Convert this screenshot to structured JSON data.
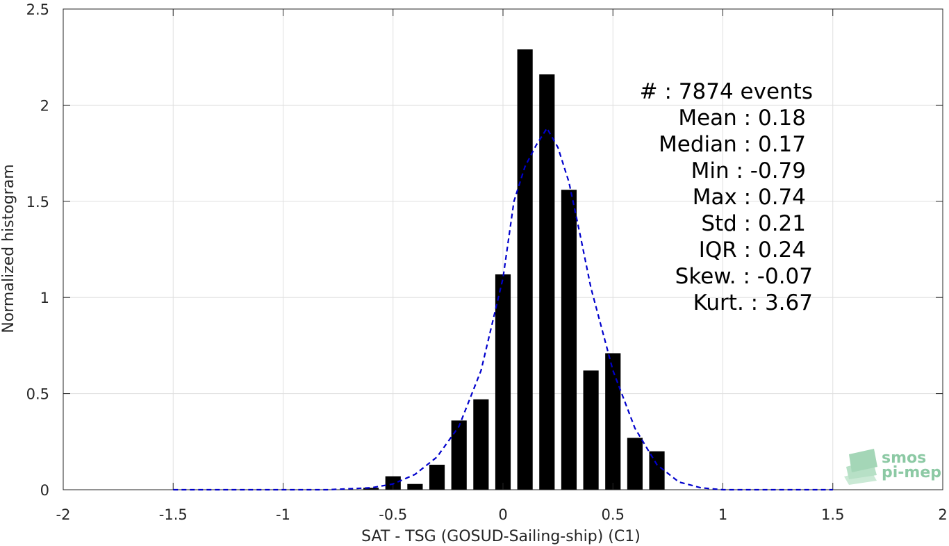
{
  "chart_data": {
    "type": "bar",
    "xlabel": "SAT - TSG (GOSUD-Sailing-ship) (C1)",
    "ylabel": "Normalized histogram",
    "xlim": [
      -2,
      2
    ],
    "ylim": [
      0,
      2.5
    ],
    "xticks": [
      -2,
      -1.5,
      -1,
      -0.5,
      0,
      0.5,
      1,
      1.5,
      2
    ],
    "xtick_labels": [
      "-2",
      "-1.5",
      "-1",
      "-0.5",
      "0",
      "0.5",
      "1",
      "1.5",
      "2"
    ],
    "yticks": [
      0,
      0.5,
      1,
      1.5,
      2,
      2.5
    ],
    "ytick_labels": [
      "0",
      "0.5",
      "1",
      "1.5",
      "2",
      "2.5"
    ],
    "grid": true,
    "bar_color": "#000000",
    "bars": {
      "x": [
        -0.6,
        -0.5,
        -0.4,
        -0.3,
        -0.2,
        -0.1,
        0.0,
        0.1,
        0.2,
        0.3,
        0.4,
        0.5,
        0.6,
        0.7
      ],
      "values": [
        0.01,
        0.07,
        0.03,
        0.13,
        0.36,
        0.47,
        1.12,
        2.29,
        2.16,
        1.56,
        0.62,
        0.71,
        0.27,
        0.2
      ]
    },
    "fit_curve": {
      "style": "dashed",
      "color": "#0000cc",
      "x": [
        -1.5,
        -1.0,
        -0.8,
        -0.6,
        -0.5,
        -0.4,
        -0.3,
        -0.2,
        -0.1,
        0.0,
        0.05,
        0.1,
        0.15,
        0.2,
        0.25,
        0.3,
        0.35,
        0.4,
        0.5,
        0.6,
        0.7,
        0.8,
        0.9,
        1.0,
        1.5
      ],
      "y": [
        0.0,
        0.0,
        0.0,
        0.01,
        0.03,
        0.08,
        0.17,
        0.33,
        0.62,
        1.1,
        1.5,
        1.68,
        1.79,
        1.88,
        1.78,
        1.6,
        1.33,
        1.05,
        0.62,
        0.32,
        0.13,
        0.04,
        0.01,
        0.0,
        0.0
      ]
    },
    "stats": [
      {
        "label": "#  : 7874 events"
      },
      {
        "label": "Mean : 0.18"
      },
      {
        "label": "Median : 0.17"
      },
      {
        "label": "Min : -0.79"
      },
      {
        "label": "Max : 0.74"
      },
      {
        "label": "Std : 0.21"
      },
      {
        "label": "IQR : 0.24"
      },
      {
        "label": "Skew. : -0.07"
      },
      {
        "label": "Kurt. : 3.67"
      }
    ]
  },
  "logo": {
    "line1": "smos",
    "line2": "pi-mep",
    "color": "#8cc9a4"
  }
}
